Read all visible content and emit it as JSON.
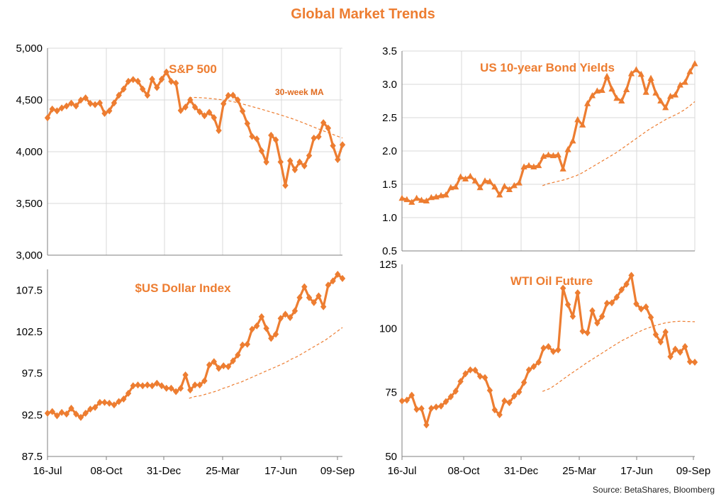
{
  "title": "Global Market Trends",
  "source": "Source:  BetaShares, Bloomberg",
  "colors": {
    "line": "#ED7D31",
    "ma": "#ED7D31",
    "grid": "#D9D9D9",
    "axis": "#7F7F7F"
  },
  "chart_data": [
    {
      "type": "line",
      "title": "S&P 500",
      "annotation": "30-week MA",
      "x_tick_labels": [
        "16-Jul",
        "08-Oct",
        "31-Dec",
        "25-Mar",
        "17-Jun",
        "09-Sep"
      ],
      "ylim": [
        3000,
        5000
      ],
      "y_ticks": [
        3000,
        3500,
        4000,
        4500,
        5000
      ],
      "y_tick_labels": [
        "3,000",
        "3,500",
        "4,000",
        "4,500",
        "5,000"
      ],
      "grid": "horizontal",
      "marker": "diamond",
      "series": [
        {
          "values": [
            4327,
            4412,
            4395,
            4422,
            4441,
            4468,
            4442,
            4498,
            4520,
            4466,
            4455,
            4471,
            4370,
            4395,
            4471,
            4545,
            4605,
            4680,
            4697,
            4681,
            4605,
            4545,
            4701,
            4620,
            4700,
            4770,
            4679,
            4662,
            4398,
            4431,
            4500,
            4431,
            4385,
            4348,
            4380,
            4329,
            4205,
            4463,
            4543,
            4545,
            4500,
            4392,
            4272,
            4147,
            4123,
            4008,
            3900,
            4158,
            4114,
            3901,
            3674,
            3912,
            3825,
            3900,
            3863,
            3962,
            4131,
            4145,
            4280,
            4228,
            4057,
            3924,
            4067
          ]
        },
        {
          "type": "dashed",
          "values": [
            4522,
            4524,
            4522,
            4518,
            4513,
            4507,
            4500,
            4491,
            4480,
            4467,
            4452,
            4437,
            4422,
            4406,
            4390,
            4374,
            4357,
            4340,
            4322,
            4302,
            4281,
            4259,
            4237,
            4215,
            4194,
            4173,
            4152,
            4132
          ]
        }
      ]
    },
    {
      "type": "line",
      "title": "US  10-year Bond Yields",
      "x_tick_labels": [
        "16-Jul",
        "08-Oct",
        "31-Dec",
        "25-Mar",
        "17-Jun",
        "09-Sep"
      ],
      "ylim": [
        0.5,
        3.5
      ],
      "y_ticks": [
        0.5,
        1.0,
        1.5,
        2.0,
        2.5,
        3.0,
        3.5
      ],
      "y_tick_labels": [
        "0.5",
        "1.0",
        "1.5",
        "2.0",
        "2.5",
        "3.0",
        "3.5"
      ],
      "grid": "horizontal",
      "marker": "triangle",
      "series": [
        {
          "values": [
            1.29,
            1.27,
            1.23,
            1.29,
            1.26,
            1.25,
            1.3,
            1.31,
            1.33,
            1.34,
            1.45,
            1.46,
            1.61,
            1.58,
            1.62,
            1.55,
            1.45,
            1.55,
            1.54,
            1.46,
            1.34,
            1.47,
            1.42,
            1.48,
            1.52,
            1.76,
            1.78,
            1.76,
            1.78,
            1.92,
            1.94,
            1.93,
            1.94,
            1.73,
            2.02,
            2.15,
            2.47,
            2.39,
            2.71,
            2.83,
            2.9,
            2.91,
            3.12,
            2.93,
            2.79,
            2.75,
            2.92,
            3.16,
            3.22,
            3.15,
            2.88,
            3.09,
            2.87,
            2.75,
            2.65,
            2.82,
            2.84,
            2.99,
            3.03,
            3.19,
            3.31
          ]
        },
        {
          "type": "dashed",
          "values": [
            1.48,
            1.51,
            1.53,
            1.55,
            1.57,
            1.6,
            1.63,
            1.67,
            1.72,
            1.77,
            1.82,
            1.87,
            1.92,
            1.97,
            2.03,
            2.09,
            2.15,
            2.21,
            2.27,
            2.33,
            2.38,
            2.43,
            2.48,
            2.52,
            2.56,
            2.61,
            2.67,
            2.74
          ]
        }
      ]
    },
    {
      "type": "line",
      "title": "$US Dollar Index",
      "x_tick_labels": [
        "16-Jul",
        "08-Oct",
        "31-Dec",
        "25-Mar",
        "17-Jun",
        "09-Sep"
      ],
      "ylim": [
        87.5,
        110.0
      ],
      "y_ticks": [
        87.5,
        92.5,
        97.5,
        102.5,
        107.5
      ],
      "y_tick_labels": [
        "87.5",
        "92.5",
        "97.5",
        "102.5",
        "107.5"
      ],
      "grid": "none",
      "marker": "diamond",
      "series": [
        {
          "values": [
            92.7,
            92.9,
            92.4,
            92.8,
            92.6,
            93.3,
            92.6,
            92.2,
            92.7,
            93.2,
            93.4,
            94.0,
            94.0,
            93.9,
            93.7,
            94.1,
            94.4,
            95.1,
            96.0,
            96.1,
            96.0,
            96.1,
            96.0,
            96.3,
            96.0,
            95.7,
            95.7,
            95.3,
            95.7,
            97.3,
            95.5,
            96.1,
            96.1,
            96.6,
            98.5,
            98.9,
            98.1,
            98.4,
            98.3,
            99.0,
            99.7,
            100.9,
            101.0,
            102.8,
            103.2,
            104.3,
            102.9,
            101.7,
            102.2,
            104.1,
            104.6,
            104.2,
            105.0,
            106.6,
            107.9,
            106.6,
            106.0,
            106.8,
            105.5,
            108.1,
            108.6,
            109.4,
            108.9
          ]
        },
        {
          "type": "dashed",
          "values": [
            94.5,
            94.7,
            94.8,
            95.0,
            95.2,
            95.4,
            95.7,
            95.9,
            96.2,
            96.4,
            96.7,
            97.0,
            97.3,
            97.6,
            97.9,
            98.2,
            98.5,
            98.8,
            99.2,
            99.5,
            99.9,
            100.3,
            100.7,
            101.1,
            101.5,
            102.0,
            102.5,
            103.0
          ]
        }
      ]
    },
    {
      "type": "line",
      "title": "WTI Oil Future",
      "x_tick_labels": [
        "16-Jul",
        "08-Oct",
        "31-Dec",
        "25-Mar",
        "17-Jun",
        "09-Sep"
      ],
      "ylim": [
        50,
        125
      ],
      "y_ticks": [
        50,
        75,
        100,
        125
      ],
      "y_tick_labels": [
        "50",
        "75",
        "100",
        "125"
      ],
      "grid": "none",
      "marker": "diamond",
      "series": [
        {
          "values": [
            71.7,
            72.0,
            73.9,
            68.4,
            68.7,
            62.3,
            68.8,
            69.3,
            69.7,
            71.4,
            73.3,
            75.5,
            79.3,
            82.3,
            83.8,
            83.7,
            81.3,
            80.8,
            75.8,
            68.2,
            66.3,
            71.7,
            71.0,
            73.6,
            75.2,
            78.9,
            83.8,
            85.1,
            86.8,
            92.3,
            92.9,
            91.0,
            91.6,
            115.7,
            109.3,
            104.7,
            113.9,
            98.9,
            98.3,
            106.9,
            102.1,
            104.7,
            109.8,
            110.0,
            112.2,
            115.1,
            117.3,
            120.7,
            109.6,
            107.6,
            108.4,
            104.3,
            97.6,
            94.7,
            98.6,
            89.0,
            91.9,
            90.7,
            92.9,
            87.0,
            86.8
          ]
        },
        {
          "type": "dashed",
          "values": [
            75.4,
            76.5,
            78.4,
            80.5,
            82.5,
            84.4,
            86.4,
            88.2,
            90.0,
            91.8,
            93.6,
            95.3,
            96.7,
            98.3,
            99.6,
            100.6,
            101.5,
            102.2,
            102.6,
            102.8,
            102.7,
            102.6
          ]
        }
      ]
    }
  ]
}
